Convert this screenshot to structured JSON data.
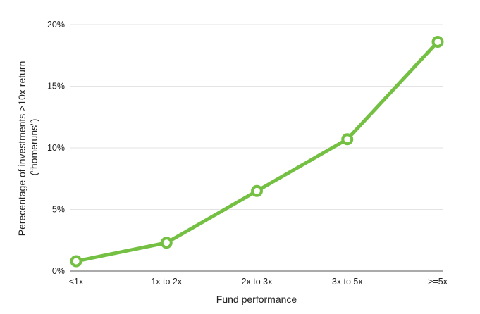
{
  "chart_data": {
    "type": "line",
    "categories": [
      "<1x",
      "1x to 2x",
      "2x to 3x",
      "3x to 5x",
      ">=5x"
    ],
    "series": [
      {
        "values": [
          0.8,
          2.3,
          6.5,
          10.7,
          18.6
        ]
      }
    ],
    "ylim": [
      0,
      20
    ],
    "yticks": [
      0,
      5,
      10,
      15,
      20
    ],
    "ytick_labels": [
      "0%",
      "5%",
      "10%",
      "15%",
      "20%"
    ],
    "xlabel": "Fund performance",
    "ylabel_lines": [
      "Perecentage of investments >10x return",
      "(“homeruns”)"
    ],
    "grid": true,
    "line_color": "#74c043",
    "marker_fill": "#ffffff"
  }
}
